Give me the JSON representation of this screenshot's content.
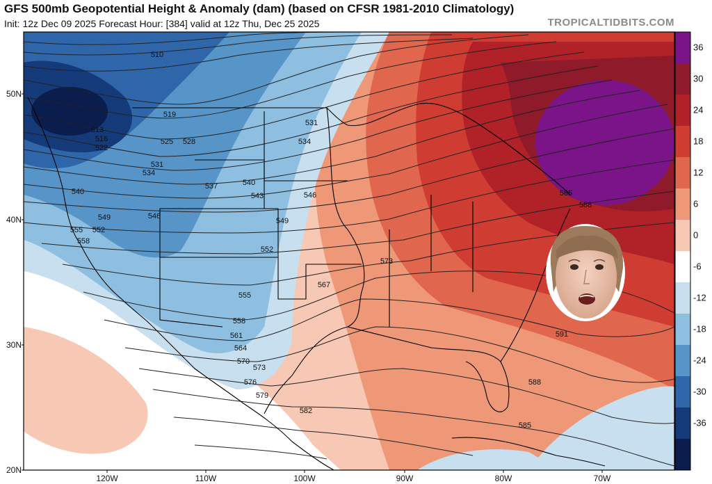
{
  "header": {
    "title": "GFS 500mb Geopotential Height & Anomaly (dam) (based on CFSR 1981-2010 Climatology)",
    "subtitle": "Init: 12z Dec 09 2025   Forecast Hour: [384]   valid at 12z Thu, Dec 25 2025",
    "watermark": "TROPICALTIDBITS.COM"
  },
  "axes": {
    "lat_labels": [
      "50N",
      "40N",
      "30N",
      "20N"
    ],
    "lon_labels": [
      "120W",
      "110W",
      "100W",
      "90W",
      "80W",
      "70W"
    ]
  },
  "colorbar": {
    "labels": [
      "36",
      "30",
      "24",
      "18",
      "12",
      "6",
      "0",
      "-6",
      "-12",
      "-18",
      "-24",
      "-30",
      "-36"
    ],
    "colors": [
      "#7a1488",
      "#8e1a2a",
      "#b02128",
      "#cf3c32",
      "#e0664e",
      "#ee9878",
      "#f7c9b4",
      "#ffffff",
      "#c8dff0",
      "#8fbfe0",
      "#5795c9",
      "#2f66aa",
      "#153a7a",
      "#0a1d4d"
    ]
  },
  "contour_labels": [
    "510",
    "519",
    "513",
    "516",
    "522",
    "525",
    "528",
    "531",
    "534",
    "531",
    "534",
    "537",
    "540",
    "540",
    "543",
    "546",
    "546",
    "549",
    "549",
    "552",
    "552",
    "555",
    "555",
    "558",
    "558",
    "561",
    "564",
    "567",
    "570",
    "573",
    "573",
    "576",
    "579",
    "582",
    "585",
    "585",
    "588",
    "588",
    "591"
  ],
  "overlay": {
    "name": "face-sticker"
  }
}
